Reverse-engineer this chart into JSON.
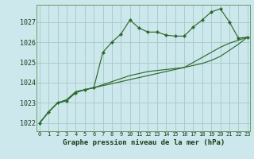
{
  "title": "Graphe pression niveau de la mer (hPa)",
  "background_color": "#cce8ec",
  "grid_color": "#aacccc",
  "line_color": "#2d6a2d",
  "x_ticks": [
    0,
    1,
    2,
    3,
    4,
    5,
    6,
    7,
    8,
    9,
    10,
    11,
    12,
    13,
    14,
    15,
    16,
    17,
    18,
    19,
    20,
    21,
    22,
    23
  ],
  "y_ticks": [
    1022,
    1023,
    1024,
    1025,
    1026,
    1027
  ],
  "ylim": [
    1021.6,
    1027.85
  ],
  "xlim": [
    -0.3,
    23.3
  ],
  "series1": [
    1022.0,
    1022.55,
    1023.0,
    1023.1,
    1023.5,
    1023.65,
    1023.75,
    1025.5,
    1026.0,
    1026.4,
    1027.1,
    1026.7,
    1026.5,
    1026.5,
    1026.35,
    1026.3,
    1026.3,
    1026.75,
    1027.1,
    1027.5,
    1027.65,
    1027.0,
    1026.2,
    1026.25
  ],
  "series2": [
    1022.0,
    1022.55,
    1023.0,
    1023.15,
    1023.55,
    1023.65,
    1023.75,
    1023.85,
    1023.95,
    1024.05,
    1024.15,
    1024.25,
    1024.35,
    1024.45,
    1024.55,
    1024.65,
    1024.75,
    1024.85,
    1024.95,
    1025.1,
    1025.3,
    1025.6,
    1025.9,
    1026.25
  ],
  "series3": [
    1022.0,
    1022.55,
    1023.0,
    1023.15,
    1023.55,
    1023.65,
    1023.75,
    1023.9,
    1024.05,
    1024.2,
    1024.35,
    1024.45,
    1024.55,
    1024.6,
    1024.65,
    1024.7,
    1024.75,
    1025.0,
    1025.25,
    1025.5,
    1025.75,
    1025.95,
    1026.1,
    1026.25
  ]
}
